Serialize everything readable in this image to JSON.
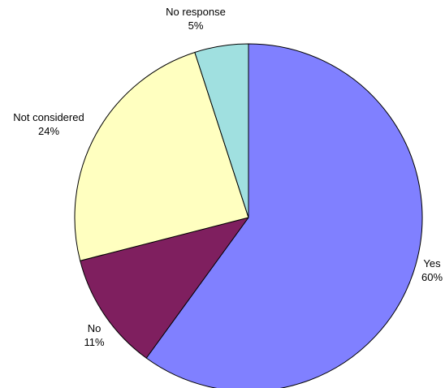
{
  "chart_data": {
    "type": "pie",
    "title": "",
    "start": "12 o'clock",
    "direction": "clockwise",
    "slices": [
      {
        "label": "Yes",
        "value": 60,
        "percent_label": "60%",
        "color": "#8080FF"
      },
      {
        "label": "No",
        "value": 11,
        "percent_label": "11%",
        "color": "#7F1F5F"
      },
      {
        "label": "Not considered",
        "value": 24,
        "percent_label": "24%",
        "color": "#FFFFC0"
      },
      {
        "label": "No response",
        "value": 5,
        "percent_label": "5%",
        "color": "#A0E0E0"
      }
    ]
  }
}
